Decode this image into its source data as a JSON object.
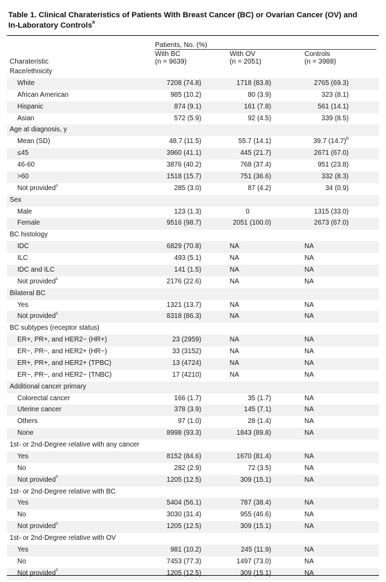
{
  "title": "Table 1. Clinical Charateristics of Patients With Breast Cancer (BC) or Ovarian Cancer (OV) and In-Laboratory Controls",
  "title_footnote": "a",
  "header": {
    "patients": "Patients, No. (%)",
    "characteristic": "Charateristic",
    "col1_line1": "With BC",
    "col1_line2": "(n = 9639)",
    "col2_line1": "With OV",
    "col2_line2": "(n = 2051)",
    "col3_line1": "Controls",
    "col3_line2": "(n = 3988)"
  },
  "rows": [
    {
      "type": "section",
      "label": "Race/ethnicity"
    },
    {
      "type": "item",
      "label": "White",
      "bc": "7208 (74.8)",
      "ov": "1718 (83.8)",
      "ctrl": "2765 (69.3)"
    },
    {
      "type": "item",
      "label": "African American",
      "bc": "985 (10.2)",
      "ov": "80 (3.9)",
      "ctrl": "323 (8.1)"
    },
    {
      "type": "item",
      "label": "Hispanic",
      "bc": "874 (9.1)",
      "ov": "161 (7.8)",
      "ctrl": "561 (14.1)"
    },
    {
      "type": "item",
      "label": "Asian",
      "bc": "572 (5.9)",
      "ov": "92 (4.5)",
      "ctrl": "339 (8.5)"
    },
    {
      "type": "section",
      "label": "Age at diagnosis, y"
    },
    {
      "type": "item",
      "label": "Mean (SD)",
      "bc": "48.7 (11.5)",
      "ov": "55.7 (14.1)",
      "ctrl": "39.7 (14.7)",
      "ctrl_sup": "b"
    },
    {
      "type": "item",
      "label": "≤45",
      "bc": "3960 (41.1)",
      "ov": "445 (21.7)",
      "ctrl": "2671 (67.0)"
    },
    {
      "type": "item",
      "label": "46-60",
      "bc": "3876 (40.2)",
      "ov": "768 (37.4)",
      "ctrl": "951 (23.8)"
    },
    {
      "type": "item",
      "label": ">60",
      "bc": "1518 (15.7)",
      "ov": "751 (36.6)",
      "ctrl": "332 (8.3)"
    },
    {
      "type": "item",
      "label": "Not provided",
      "label_sup": "c",
      "bc": "285 (3.0)",
      "ov": "87 (4.2)",
      "ctrl": "34 (0.9)"
    },
    {
      "type": "section",
      "label": "Sex"
    },
    {
      "type": "item",
      "label": "Male",
      "bc": "123 (1.3)",
      "ov": "0",
      "ctrl": "1315 (33.0)"
    },
    {
      "type": "item",
      "label": "Female",
      "bc": "9516 (98.7)",
      "ov": "2051 (100.0)",
      "ctrl": "2673 (67.0)"
    },
    {
      "type": "section",
      "label": "BC histology"
    },
    {
      "type": "item",
      "label": "IDC",
      "bc": "6829 (70.8)",
      "ov": "NA",
      "ctrl": "NA"
    },
    {
      "type": "item",
      "label": "ILC",
      "bc": "493 (5.1)",
      "ov": "NA",
      "ctrl": "NA"
    },
    {
      "type": "item",
      "label": "IDC and ILC",
      "bc": "141 (1.5)",
      "ov": "NA",
      "ctrl": "NA"
    },
    {
      "type": "item",
      "label": "Not provided",
      "label_sup": "c",
      "bc": "2176 (22.6)",
      "ov": "NA",
      "ctrl": "NA"
    },
    {
      "type": "section",
      "label": "Bilateral BC"
    },
    {
      "type": "item",
      "label": "Yes",
      "bc": "1321 (13.7)",
      "ov": "NA",
      "ctrl": "NA"
    },
    {
      "type": "item",
      "label": "Not provided",
      "label_sup": "c",
      "bc": "8318 (86.3)",
      "ov": "NA",
      "ctrl": "NA"
    },
    {
      "type": "section",
      "label": "BC subtypes (receptor status)"
    },
    {
      "type": "item",
      "label": "ER+, PR+, and HER2− (HR+)",
      "bc": "23 (2959)",
      "ov": "NA",
      "ctrl": "NA"
    },
    {
      "type": "item",
      "label": "ER−, PR−, and HER2+ (HR−)",
      "bc": "33 (3152)",
      "ov": "NA",
      "ctrl": "NA"
    },
    {
      "type": "item",
      "label": "ER+, PR+, and HER2+ (TPBC)",
      "bc": "13 (4724)",
      "ov": "NA",
      "ctrl": "NA"
    },
    {
      "type": "item",
      "label": "ER−, PR−, and HER2− (TNBC)",
      "bc": "17 (4210)",
      "ov": "NA",
      "ctrl": "NA"
    },
    {
      "type": "section",
      "label": "Additional cancer primary"
    },
    {
      "type": "item",
      "label": "Colorectal cancer",
      "bc": "166 (1.7)",
      "ov": "35 (1.7)",
      "ctrl": "NA"
    },
    {
      "type": "item",
      "label": "Uterine cancer",
      "bc": "378 (3.9)",
      "ov": "145 (7.1)",
      "ctrl": "NA"
    },
    {
      "type": "item",
      "label": "Others",
      "bc": "97 (1.0)",
      "ov": "28 (1.4)",
      "ctrl": "NA"
    },
    {
      "type": "item",
      "label": "None",
      "bc": "8998 (93.3)",
      "ov": "1843 (89.8)",
      "ctrl": "NA"
    },
    {
      "type": "section",
      "label": "1st- or 2nd-Degree relative with any cancer"
    },
    {
      "type": "item",
      "label": "Yes",
      "bc": "8152 (84.6)",
      "ov": "1670 (81.4)",
      "ctrl": "NA"
    },
    {
      "type": "item",
      "label": "No",
      "bc": "282 (2.9)",
      "ov": "72 (3.5)",
      "ctrl": "NA"
    },
    {
      "type": "item",
      "label": "Not provided",
      "label_sup": "c",
      "bc": "1205 (12.5)",
      "ov": "309 (15.1)",
      "ctrl": "NA"
    },
    {
      "type": "section",
      "label": "1st- or 2nd-Degree relative with BC"
    },
    {
      "type": "item",
      "label": "Yes",
      "bc": "5404 (56.1)",
      "ov": "787 (38.4)",
      "ctrl": "NA"
    },
    {
      "type": "item",
      "label": "No",
      "bc": "3030 (31.4)",
      "ov": "955 (46.6)",
      "ctrl": "NA"
    },
    {
      "type": "item",
      "label": "Not provided",
      "label_sup": "c",
      "bc": "1205 (12.5)",
      "ov": "309 (15.1)",
      "ctrl": "NA"
    },
    {
      "type": "section",
      "label": "1st- or 2nd-Degree relative with OV"
    },
    {
      "type": "item",
      "label": "Yes",
      "bc": "981 (10.2)",
      "ov": "245 (11.9)",
      "ctrl": "NA"
    },
    {
      "type": "item",
      "label": "No",
      "bc": "7453 (77.3)",
      "ov": "1497 (73.0)",
      "ctrl": "NA"
    },
    {
      "type": "item",
      "label": "Not provided",
      "label_sup": "c",
      "bc": "1205 (12.5)",
      "ov": "309 (15.1)",
      "ctrl": "NA"
    }
  ]
}
